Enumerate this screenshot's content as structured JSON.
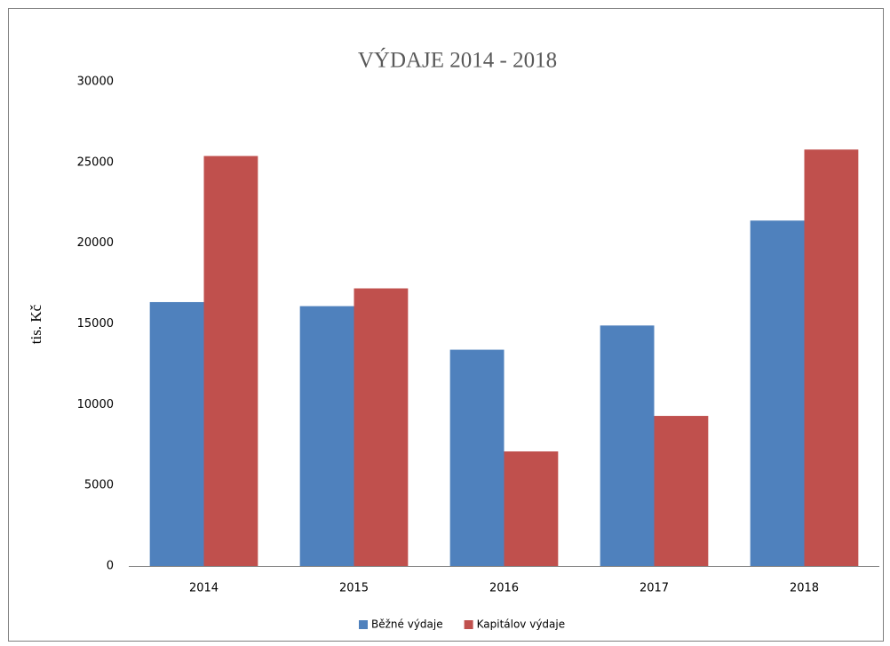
{
  "chart_data": {
    "type": "bar",
    "title": "VÝDAJE 2014 - 2018",
    "y_label": "tis. Kč",
    "categories": [
      "2014",
      "2015",
      "2016",
      "2017",
      "2018"
    ],
    "series": [
      {
        "name": "Běžné výdaje",
        "color": "#4f81bd",
        "values": [
          16350,
          16100,
          13400,
          14900,
          21400
        ]
      },
      {
        "name": "Kapitálov výdaje",
        "color": "#c0504d",
        "values": [
          25400,
          17200,
          7100,
          9300,
          25800
        ]
      }
    ],
    "ylim": [
      0,
      30000
    ],
    "yticks": [
      0,
      5000,
      10000,
      15000,
      20000,
      25000,
      30000
    ],
    "grid": false,
    "legend": "bottom"
  }
}
